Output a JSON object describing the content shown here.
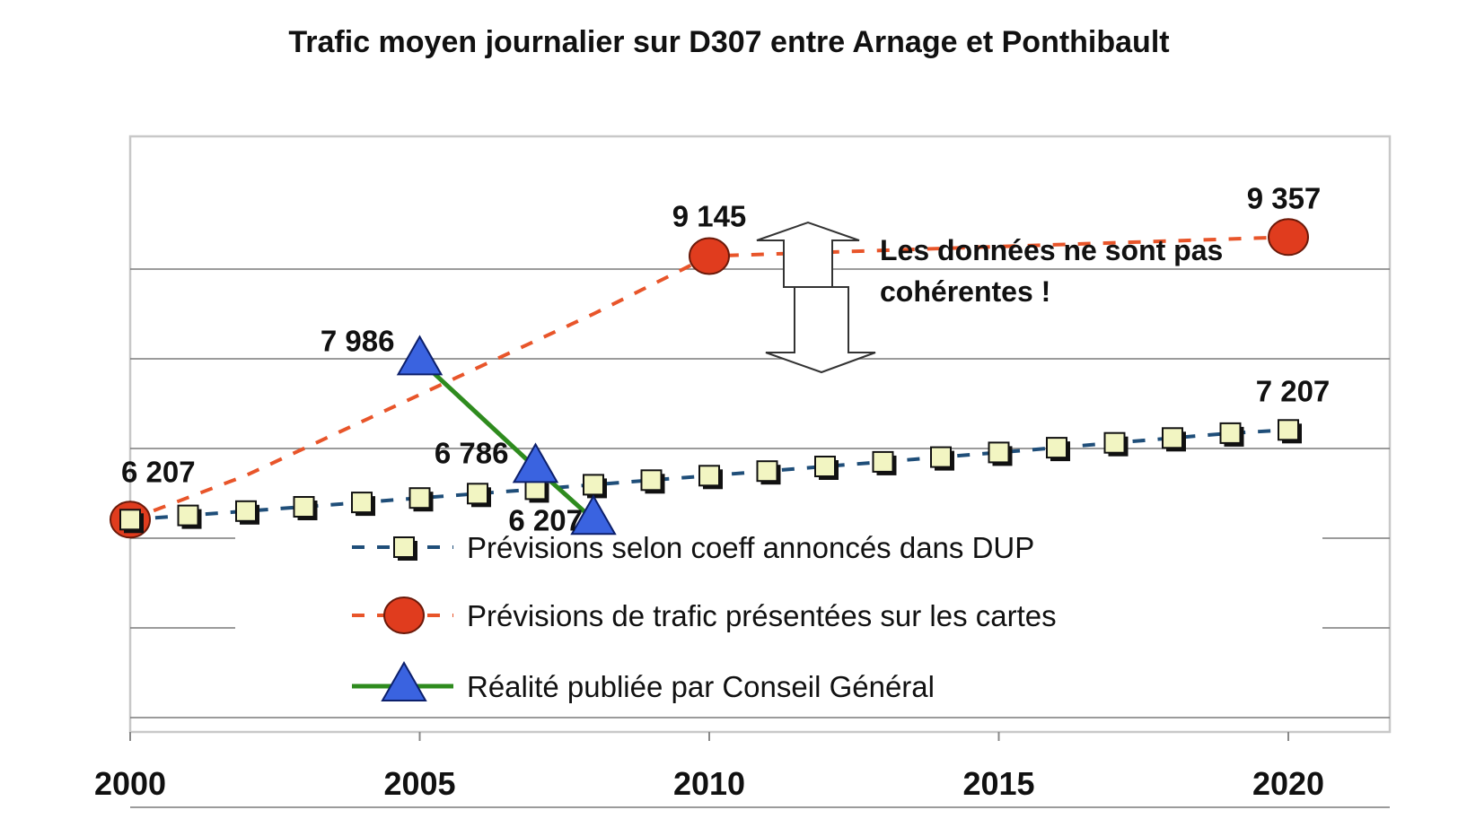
{
  "chart_data": {
    "type": "line",
    "title": "Trafic moyen journalier sur D307 entre Arnage et Ponthibault",
    "xlabel": "",
    "ylabel": "",
    "xlim": [
      2000,
      2022
    ],
    "ylim": [
      0,
      10000
    ],
    "x_ticks": [
      "2000",
      "2005",
      "2010",
      "2015",
      "2020"
    ],
    "grid": true,
    "legend_position": "bottom-center, inside plot",
    "series": [
      {
        "name": "Prévisions selon coeff annoncés dans DUP",
        "color": "#1f4e79",
        "marker_color": "#f2f5c2",
        "marker": "square",
        "line_style": "dashed",
        "x": [
          2000,
          2001,
          2002,
          2003,
          2004,
          2005,
          2006,
          2007,
          2008,
          2009,
          2010,
          2011,
          2012,
          2013,
          2014,
          2015,
          2016,
          2017,
          2018,
          2019,
          2020
        ],
        "values": [
          6207,
          6254,
          6302,
          6350,
          6399,
          6448,
          6497,
          6546,
          6596,
          6647,
          6697,
          6748,
          6800,
          6851,
          6904,
          6956,
          7009,
          7063,
          7117,
          7171,
          7207
        ]
      },
      {
        "name": "Prévisions  de trafic présentées sur les cartes",
        "color": "#e8552a",
        "marker_color": "#e03c1e",
        "marker": "circle",
        "line_style": "dashed",
        "x": [
          2000,
          2002,
          2005,
          2008,
          2010,
          2020
        ],
        "values": [
          6207,
          6700,
          7600,
          8500,
          9145,
          9357
        ]
      },
      {
        "name": "Réalité publiée par Conseil Général",
        "color": "#2e8b1e",
        "marker_color": "#3a63e0",
        "marker": "triangle",
        "line_style": "solid",
        "x": [
          2005,
          2007,
          2008
        ],
        "values": [
          7986,
          6786,
          6207
        ]
      }
    ],
    "data_labels": [
      {
        "series": 1,
        "x": 2000,
        "text": "6 207"
      },
      {
        "series": 1,
        "x": 2010,
        "text": "9 145"
      },
      {
        "series": 1,
        "x": 2020,
        "text": "9 357"
      },
      {
        "series": 0,
        "x": 2020,
        "text": "7 207"
      },
      {
        "series": 2,
        "x": 2005,
        "text": "7 986"
      },
      {
        "series": 2,
        "x": 2007,
        "text": "6 786"
      },
      {
        "series": 2,
        "x": 2008,
        "text": "6 207"
      }
    ],
    "annotation": {
      "lines": [
        "Les données ne sont pas",
        "cohérentes !"
      ],
      "icon": "double-arrow-icon"
    }
  }
}
